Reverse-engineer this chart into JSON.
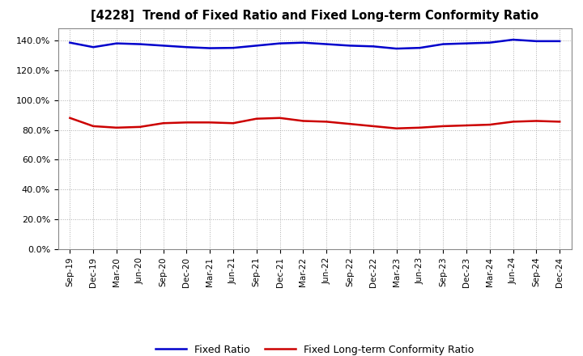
{
  "title": "[4228]  Trend of Fixed Ratio and Fixed Long-term Conformity Ratio",
  "labels": [
    "Sep-19",
    "Dec-19",
    "Mar-20",
    "Jun-20",
    "Sep-20",
    "Dec-20",
    "Mar-21",
    "Jun-21",
    "Sep-21",
    "Dec-21",
    "Mar-22",
    "Jun-22",
    "Sep-22",
    "Dec-22",
    "Mar-23",
    "Jun-23",
    "Sep-23",
    "Dec-23",
    "Mar-24",
    "Jun-24",
    "Sep-24",
    "Dec-24"
  ],
  "fixed_ratio": [
    138.5,
    135.5,
    138.0,
    137.5,
    136.5,
    135.5,
    134.8,
    135.0,
    136.5,
    138.0,
    138.5,
    137.5,
    136.5,
    136.0,
    134.5,
    135.0,
    137.5,
    138.0,
    138.5,
    140.5,
    139.5,
    139.5
  ],
  "fixed_lt_ratio": [
    88.0,
    82.5,
    81.5,
    82.0,
    84.5,
    85.0,
    85.0,
    84.5,
    87.5,
    88.0,
    86.0,
    85.5,
    84.0,
    82.5,
    81.0,
    81.5,
    82.5,
    83.0,
    83.5,
    85.5,
    86.0,
    85.5
  ],
  "fixed_ratio_color": "#0000cc",
  "fixed_lt_ratio_color": "#cc0000",
  "ylim": [
    0,
    148
  ],
  "yticks": [
    0,
    20,
    40,
    60,
    80,
    100,
    120,
    140
  ],
  "ytick_labels": [
    "0.0%",
    "20.0%",
    "40.0%",
    "60.0%",
    "80.0%",
    "100.0%",
    "120.0%",
    "140.0%"
  ],
  "legend_fixed": "Fixed Ratio",
  "legend_lt": "Fixed Long-term Conformity Ratio",
  "bg_color": "#ffffff",
  "plot_bg_color": "#ffffff",
  "grid_color": "#999999"
}
